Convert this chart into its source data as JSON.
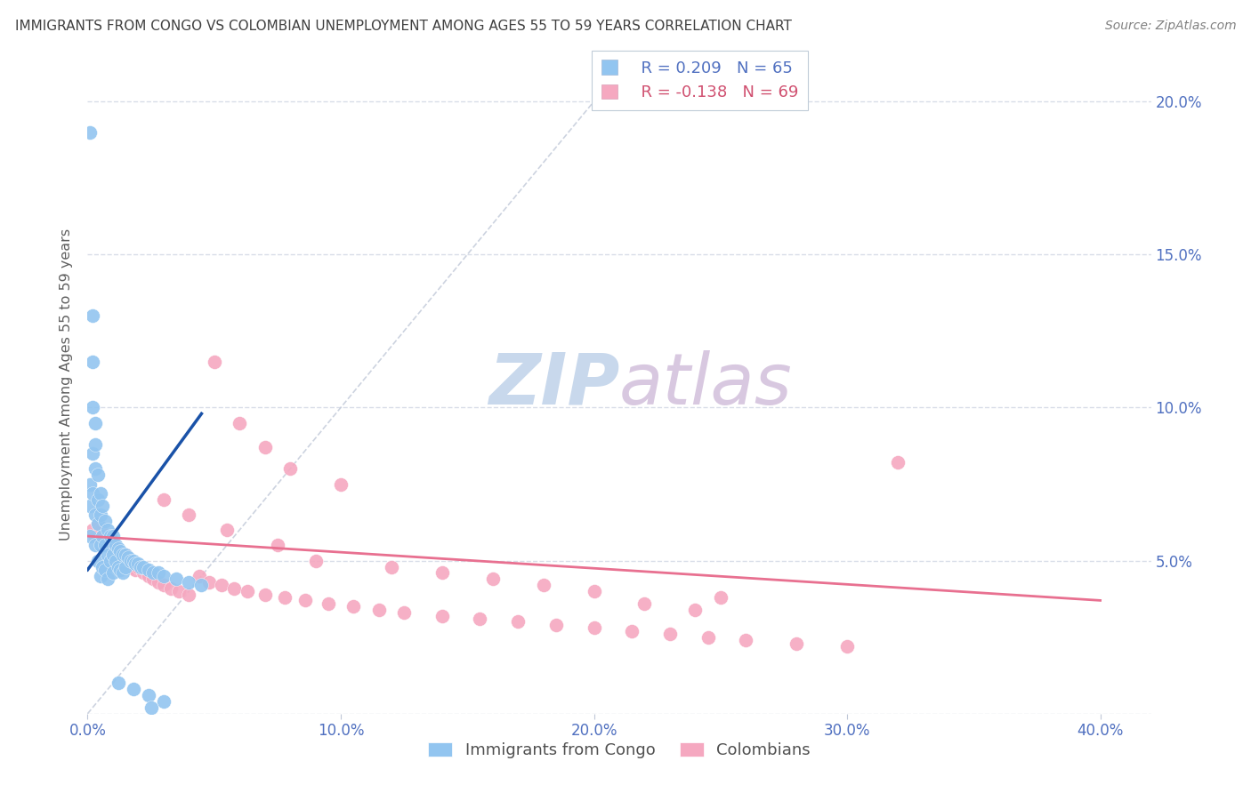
{
  "title": "IMMIGRANTS FROM CONGO VS COLOMBIAN UNEMPLOYMENT AMONG AGES 55 TO 59 YEARS CORRELATION CHART",
  "source": "Source: ZipAtlas.com",
  "ylabel": "Unemployment Among Ages 55 to 59 years",
  "x_tick_vals": [
    0.0,
    0.1,
    0.2,
    0.3,
    0.4
  ],
  "x_tick_labels": [
    "0.0%",
    "10.0%",
    "20.0%",
    "30.0%",
    "40.0%"
  ],
  "y_tick_vals": [
    0.0,
    0.05,
    0.1,
    0.15,
    0.2
  ],
  "y_tick_labels_right": [
    "",
    "5.0%",
    "10.0%",
    "15.0%",
    "20.0%"
  ],
  "xlim": [
    0.0,
    0.42
  ],
  "ylim": [
    0.0,
    0.215
  ],
  "legend_congo_r": "R = 0.209",
  "legend_congo_n": "N = 65",
  "legend_colombian_r": "R = -0.138",
  "legend_colombian_n": "N = 69",
  "congo_color": "#92c5f0",
  "colombian_color": "#f5a8c0",
  "congo_line_color": "#1a52a8",
  "colombian_line_color": "#e87090",
  "dashed_line_color": "#c0c8d8",
  "title_color": "#404040",
  "axis_label_color": "#5070c0",
  "grid_color": "#d8dde8",
  "watermark_zip_color": "#c8d8ec",
  "watermark_atlas_color": "#d8c8e0",
  "congo_trend_x": [
    0.0,
    0.045
  ],
  "congo_trend_y": [
    0.047,
    0.098
  ],
  "colombian_trend_x": [
    0.0,
    0.4
  ],
  "colombian_trend_y": [
    0.058,
    0.037
  ],
  "dashed_line_x": [
    0.0,
    0.215
  ],
  "dashed_line_y": [
    0.0,
    0.215
  ],
  "congo_x": [
    0.001,
    0.001,
    0.001,
    0.001,
    0.002,
    0.002,
    0.002,
    0.002,
    0.002,
    0.003,
    0.003,
    0.003,
    0.003,
    0.003,
    0.004,
    0.004,
    0.004,
    0.004,
    0.005,
    0.005,
    0.005,
    0.005,
    0.006,
    0.006,
    0.006,
    0.007,
    0.007,
    0.007,
    0.008,
    0.008,
    0.008,
    0.009,
    0.009,
    0.01,
    0.01,
    0.01,
    0.011,
    0.011,
    0.012,
    0.012,
    0.013,
    0.013,
    0.014,
    0.014,
    0.015,
    0.015,
    0.016,
    0.017,
    0.018,
    0.019,
    0.02,
    0.021,
    0.022,
    0.024,
    0.026,
    0.028,
    0.03,
    0.035,
    0.04,
    0.045,
    0.012,
    0.018,
    0.024,
    0.03,
    0.025
  ],
  "congo_y": [
    0.19,
    0.075,
    0.068,
    0.058,
    0.13,
    0.115,
    0.1,
    0.085,
    0.072,
    0.095,
    0.088,
    0.08,
    0.065,
    0.055,
    0.078,
    0.07,
    0.062,
    0.05,
    0.072,
    0.065,
    0.055,
    0.045,
    0.068,
    0.058,
    0.048,
    0.063,
    0.055,
    0.047,
    0.06,
    0.052,
    0.044,
    0.058,
    0.05,
    0.058,
    0.052,
    0.046,
    0.055,
    0.05,
    0.054,
    0.048,
    0.053,
    0.047,
    0.052,
    0.046,
    0.052,
    0.048,
    0.051,
    0.05,
    0.05,
    0.049,
    0.049,
    0.048,
    0.048,
    0.047,
    0.046,
    0.046,
    0.045,
    0.044,
    0.043,
    0.042,
    0.01,
    0.008,
    0.006,
    0.004,
    0.002
  ],
  "colombian_x": [
    0.002,
    0.003,
    0.004,
    0.005,
    0.006,
    0.007,
    0.008,
    0.009,
    0.01,
    0.011,
    0.012,
    0.013,
    0.014,
    0.015,
    0.016,
    0.017,
    0.018,
    0.019,
    0.02,
    0.022,
    0.024,
    0.026,
    0.028,
    0.03,
    0.033,
    0.036,
    0.04,
    0.044,
    0.048,
    0.053,
    0.058,
    0.063,
    0.07,
    0.078,
    0.086,
    0.095,
    0.105,
    0.115,
    0.125,
    0.14,
    0.155,
    0.17,
    0.185,
    0.2,
    0.215,
    0.23,
    0.245,
    0.26,
    0.28,
    0.3,
    0.05,
    0.06,
    0.07,
    0.08,
    0.1,
    0.12,
    0.14,
    0.16,
    0.18,
    0.2,
    0.25,
    0.22,
    0.24,
    0.32,
    0.03,
    0.04,
    0.055,
    0.075,
    0.09
  ],
  "colombian_y": [
    0.06,
    0.058,
    0.062,
    0.06,
    0.058,
    0.056,
    0.055,
    0.057,
    0.055,
    0.054,
    0.053,
    0.052,
    0.051,
    0.052,
    0.05,
    0.049,
    0.048,
    0.047,
    0.048,
    0.046,
    0.045,
    0.044,
    0.043,
    0.042,
    0.041,
    0.04,
    0.039,
    0.045,
    0.043,
    0.042,
    0.041,
    0.04,
    0.039,
    0.038,
    0.037,
    0.036,
    0.035,
    0.034,
    0.033,
    0.032,
    0.031,
    0.03,
    0.029,
    0.028,
    0.027,
    0.026,
    0.025,
    0.024,
    0.023,
    0.022,
    0.115,
    0.095,
    0.087,
    0.08,
    0.075,
    0.048,
    0.046,
    0.044,
    0.042,
    0.04,
    0.038,
    0.036,
    0.034,
    0.082,
    0.07,
    0.065,
    0.06,
    0.055,
    0.05
  ]
}
